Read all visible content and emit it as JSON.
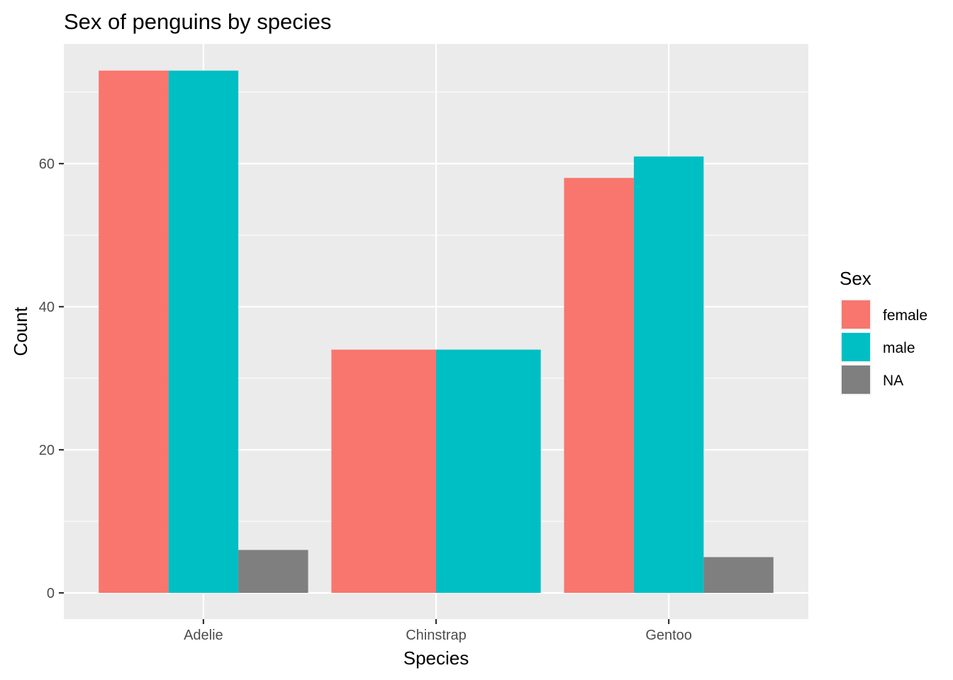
{
  "chart_data": {
    "type": "bar",
    "title": "Sex of penguins by species",
    "xlabel": "Species",
    "ylabel": "Count",
    "categories": [
      "Adelie",
      "Chinstrap",
      "Gentoo"
    ],
    "series": [
      {
        "name": "female",
        "color": "#F8766D",
        "values": [
          73,
          34,
          58
        ]
      },
      {
        "name": "male",
        "color": "#00BFC4",
        "values": [
          73,
          34,
          61
        ]
      },
      {
        "name": "NA",
        "color": "#7F7F7F",
        "values": [
          6,
          null,
          5
        ]
      }
    ],
    "ylim": [
      0,
      76.7
    ],
    "yticks": [
      0,
      20,
      40,
      60
    ],
    "grid": true,
    "legend": {
      "title": "Sex",
      "placement": "right"
    }
  }
}
